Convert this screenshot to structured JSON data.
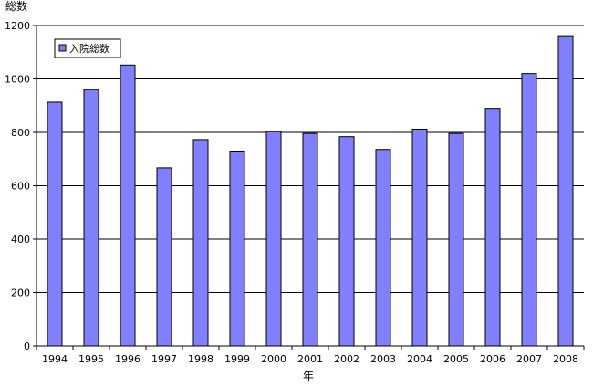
{
  "chart_data": {
    "type": "bar",
    "title": "",
    "ylabel": "総数",
    "xlabel": "年",
    "categories": [
      "1994",
      "1995",
      "1996",
      "1997",
      "1998",
      "1999",
      "2000",
      "2001",
      "2002",
      "2003",
      "2004",
      "2005",
      "2006",
      "2007",
      "2008"
    ],
    "series": [
      {
        "name": "入院総数",
        "values": [
          913,
          960,
          1052,
          667,
          773,
          730,
          803,
          796,
          784,
          736,
          812,
          796,
          890,
          1020,
          1162
        ]
      }
    ],
    "ylim": [
      0,
      1200
    ],
    "yticks": [
      0,
      200,
      400,
      600,
      800,
      1000,
      1200
    ],
    "grid": "horizontal",
    "legend_position": "top-left",
    "colors": {
      "bar_fill": "#8080ff",
      "bar_stroke": "#000000",
      "grid": "#000000",
      "axis": "#000000",
      "background": "#ffffff"
    }
  }
}
